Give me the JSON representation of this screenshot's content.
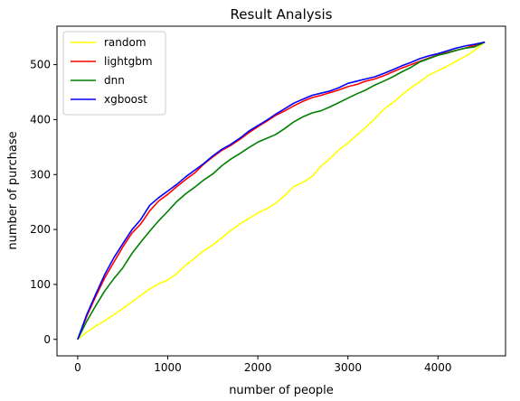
{
  "chart_data": {
    "type": "line",
    "title": "Result Analysis",
    "xlabel": "number of people",
    "ylabel": "number of purchase",
    "xlim": [
      -230,
      4750
    ],
    "ylim": [
      -30,
      570
    ],
    "xticks": [
      0,
      1000,
      2000,
      3000,
      4000
    ],
    "xtick_labels": [
      "0",
      "1000",
      "2000",
      "3000",
      "4000"
    ],
    "yticks": [
      0,
      100,
      200,
      300,
      400,
      500
    ],
    "ytick_labels": [
      "0",
      "100",
      "200",
      "300",
      "400",
      "500"
    ],
    "grid": false,
    "legend_position": "upper-left",
    "series": [
      {
        "name": "random",
        "color": "#ffff00",
        "x": [
          0,
          100,
          200,
          300,
          400,
          500,
          600,
          700,
          800,
          900,
          1000,
          1100,
          1200,
          1300,
          1400,
          1500,
          1600,
          1700,
          1800,
          1900,
          2000,
          2100,
          2200,
          2300,
          2400,
          2500,
          2600,
          2700,
          2800,
          2900,
          3000,
          3100,
          3200,
          3300,
          3400,
          3500,
          3600,
          3700,
          3800,
          3900,
          4000,
          4100,
          4200,
          4300,
          4400,
          4520
        ],
        "y": [
          0,
          13,
          24,
          34,
          45,
          56,
          68,
          80,
          92,
          101,
          108,
          120,
          135,
          148,
          161,
          172,
          185,
          198,
          210,
          220,
          230,
          238,
          248,
          262,
          278,
          286,
          296,
          315,
          329,
          345,
          357,
          372,
          386,
          402,
          419,
          431,
          445,
          458,
          469,
          481,
          489,
          497,
          506,
          515,
          525,
          541
        ]
      },
      {
        "name": "lightgbm",
        "color": "#ff0000",
        "x": [
          0,
          100,
          200,
          300,
          400,
          500,
          600,
          700,
          800,
          900,
          1000,
          1100,
          1200,
          1300,
          1400,
          1500,
          1600,
          1700,
          1800,
          1900,
          2000,
          2100,
          2200,
          2300,
          2400,
          2500,
          2600,
          2700,
          2800,
          2900,
          3000,
          3100,
          3200,
          3300,
          3400,
          3500,
          3600,
          3700,
          3800,
          3900,
          4000,
          4100,
          4200,
          4300,
          4400,
          4520
        ],
        "y": [
          0,
          42,
          78,
          112,
          140,
          168,
          193,
          210,
          234,
          252,
          264,
          278,
          291,
          303,
          319,
          332,
          344,
          353,
          364,
          376,
          387,
          397,
          408,
          416,
          425,
          433,
          440,
          444,
          449,
          454,
          460,
          464,
          470,
          474,
          480,
          487,
          494,
          500,
          506,
          512,
          518,
          522,
          526,
          530,
          535,
          541
        ]
      },
      {
        "name": "dnn",
        "color": "#008000",
        "x": [
          0,
          100,
          200,
          300,
          400,
          500,
          600,
          700,
          800,
          900,
          1000,
          1100,
          1200,
          1300,
          1400,
          1500,
          1600,
          1700,
          1800,
          1900,
          2000,
          2100,
          2200,
          2300,
          2400,
          2500,
          2600,
          2700,
          2800,
          2900,
          3000,
          3100,
          3200,
          3300,
          3400,
          3500,
          3600,
          3700,
          3800,
          3900,
          4000,
          4100,
          4200,
          4300,
          4400,
          4520
        ],
        "y": [
          0,
          33,
          61,
          88,
          110,
          130,
          156,
          177,
          197,
          216,
          233,
          251,
          265,
          277,
          290,
          301,
          316,
          328,
          338,
          349,
          359,
          366,
          373,
          384,
          396,
          405,
          412,
          416,
          423,
          431,
          439,
          447,
          454,
          463,
          470,
          478,
          487,
          495,
          505,
          511,
          517,
          521,
          526,
          530,
          532,
          541
        ]
      },
      {
        "name": "xgboost",
        "color": "#0000ff",
        "x": [
          0,
          100,
          200,
          300,
          400,
          500,
          600,
          700,
          800,
          900,
          1000,
          1100,
          1200,
          1300,
          1400,
          1500,
          1600,
          1700,
          1800,
          1900,
          2000,
          2100,
          2200,
          2300,
          2400,
          2500,
          2600,
          2700,
          2800,
          2900,
          3000,
          3100,
          3200,
          3300,
          3400,
          3500,
          3600,
          3700,
          3800,
          3900,
          4000,
          4100,
          4200,
          4300,
          4400,
          4520
        ],
        "y": [
          0,
          45,
          82,
          118,
          148,
          174,
          199,
          218,
          244,
          258,
          270,
          282,
          296,
          308,
          320,
          334,
          346,
          355,
          366,
          379,
          389,
          399,
          410,
          420,
          430,
          437,
          444,
          448,
          452,
          458,
          466,
          470,
          474,
          478,
          484,
          491,
          498,
          504,
          511,
          516,
          520,
          525,
          530,
          534,
          537,
          541
        ]
      }
    ]
  }
}
